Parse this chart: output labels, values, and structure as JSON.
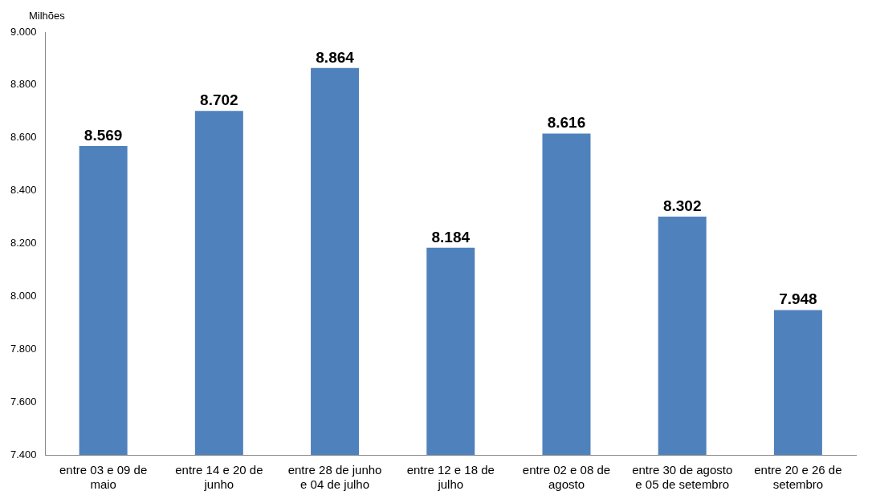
{
  "chart_data": {
    "type": "bar",
    "ylabel": "Milhões",
    "categories": [
      "entre 03 e 09 de maio",
      "entre 14 e 20 de junho",
      "entre 28 de junho e 04 de julho",
      "entre 12 e 18 de julho",
      "entre 02 e 08 de agosto",
      "entre 30 de agosto e 05 de setembro",
      "entre 20 e 26 de setembro"
    ],
    "values": [
      8569,
      8702,
      8864,
      8184,
      8616,
      8302,
      7948
    ],
    "value_labels": [
      "8.569",
      "8.702",
      "8.864",
      "8.184",
      "8.616",
      "8.302",
      "7.948"
    ],
    "color": "#4f81bd",
    "ylim": [
      7400,
      9000
    ],
    "yticks": [
      {
        "value": 7400,
        "label": "7.400"
      },
      {
        "value": 7600,
        "label": "7.600"
      },
      {
        "value": 7800,
        "label": "7.800"
      },
      {
        "value": 8000,
        "label": "8.000"
      },
      {
        "value": 8200,
        "label": "8.200"
      },
      {
        "value": 8400,
        "label": "8.400"
      },
      {
        "value": 8600,
        "label": "8.600"
      },
      {
        "value": 8800,
        "label": "8.800"
      },
      {
        "value": 9000,
        "label": "9.000"
      }
    ],
    "grid": false,
    "legend": false
  }
}
